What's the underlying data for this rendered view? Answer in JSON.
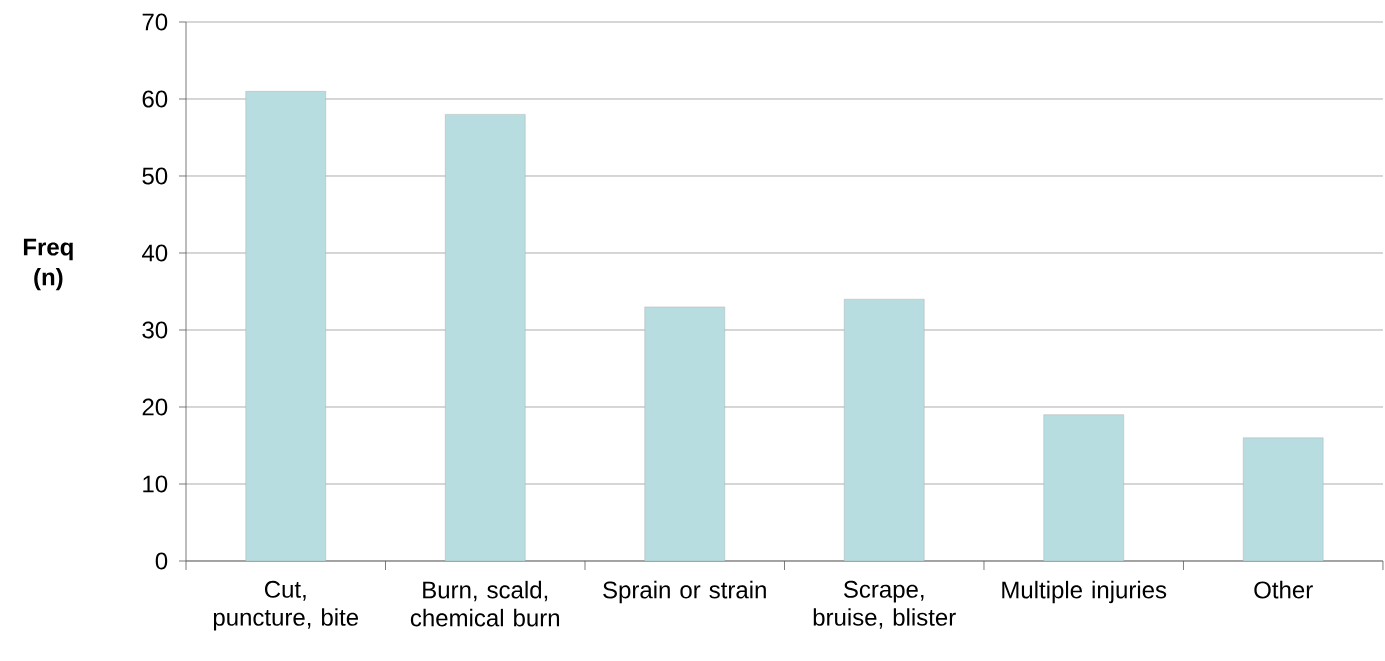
{
  "chart_data": {
    "type": "bar",
    "ylabel": "Freq (n)",
    "categories": [
      "Cut, puncture, bite",
      "Burn, scald, chemical burn",
      "Sprain or strain",
      "Scrape, bruise, blister",
      "Multiple injuries",
      "Other"
    ],
    "values": [
      61,
      58,
      33,
      34,
      19,
      16
    ],
    "color": "#b7dde0",
    "ylim": [
      0,
      70
    ],
    "yticks": [
      0,
      10,
      20,
      30,
      40,
      50,
      60,
      70
    ],
    "grid": "y"
  }
}
